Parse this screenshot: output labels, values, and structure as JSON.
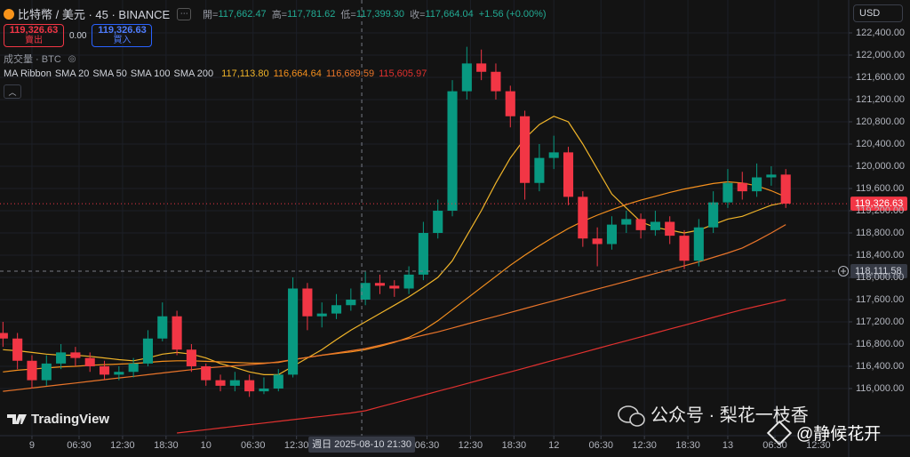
{
  "ui": {
    "symbol": "比特幣 / 美元 · 45 · BINANCE",
    "ohlc": [
      {
        "label": "開=",
        "value": "117,662.47"
      },
      {
        "label": "高=",
        "value": "117,781.62"
      },
      {
        "label": "低=",
        "value": "117,399.30"
      },
      {
        "label": "收=",
        "value": "117,664.04"
      }
    ],
    "change": "+1.56 (+0.00%)",
    "sell_price": "119,326.63",
    "sell_label": "賣出",
    "spread": "0.00",
    "buy_price": "119,326.63",
    "buy_label": "買入",
    "volume_label": "成交量 · BTC",
    "indicator_name": "MA Ribbon",
    "ma_values": [
      "117,113.80",
      "116,664.64",
      "116,689.59",
      "115,605.97"
    ],
    "currency": "USD",
    "logo": "TradingView",
    "watermark": "公众号 · 梨花一枝香",
    "watermark_handle": "@静候花开"
  },
  "chart_data": {
    "type": "candlestick",
    "x": [
      -4,
      -2,
      0,
      2,
      4,
      6,
      8,
      10,
      12,
      14,
      16,
      18,
      20,
      22,
      24,
      26,
      28,
      30,
      32,
      34,
      36,
      38,
      40,
      42,
      44,
      46,
      48,
      50,
      52,
      54,
      56,
      58,
      60,
      62,
      64,
      66,
      68,
      70,
      72,
      74,
      76,
      78,
      80,
      82,
      84,
      86,
      88,
      90,
      92,
      94,
      96,
      98,
      100,
      102,
      104
    ],
    "open": [
      117000,
      116900,
      116500,
      116150,
      116450,
      116650,
      116550,
      116400,
      116250,
      116300,
      116450,
      116900,
      117300,
      116700,
      116400,
      116150,
      116050,
      116150,
      115950,
      116000,
      116250,
      117800,
      117300,
      117350,
      117500,
      117600,
      117900,
      117850,
      117800,
      118050,
      118800,
      119200,
      121350,
      121850,
      121700,
      121350,
      120900,
      119700,
      120150,
      120250,
      119450,
      118700,
      118600,
      118950,
      119050,
      118850,
      119000,
      118750,
      118300,
      118900,
      119350,
      119700,
      119550,
      119800,
      119850
    ],
    "high": [
      117200,
      117000,
      116600,
      116600,
      116800,
      116750,
      116650,
      116500,
      116400,
      116550,
      117050,
      117550,
      117400,
      116800,
      116450,
      116250,
      116300,
      116250,
      116200,
      116350,
      118000,
      117900,
      117550,
      117700,
      117800,
      118100,
      118050,
      117950,
      118200,
      119000,
      119400,
      121550,
      122150,
      122100,
      121850,
      121450,
      121000,
      120400,
      120550,
      120350,
      119550,
      118900,
      119100,
      119200,
      119150,
      119200,
      119100,
      118850,
      119050,
      119550,
      119950,
      119900,
      120050,
      120000,
      119950
    ],
    "low": [
      116750,
      116350,
      116000,
      116050,
      116350,
      116400,
      116300,
      116150,
      116150,
      116200,
      116400,
      116850,
      116600,
      116300,
      116050,
      115950,
      115950,
      115850,
      115900,
      115950,
      116200,
      117050,
      117100,
      117250,
      117400,
      117500,
      117700,
      117650,
      117700,
      117950,
      118700,
      119100,
      121200,
      121550,
      121200,
      120700,
      119400,
      119550,
      119950,
      119300,
      118550,
      118200,
      118500,
      118800,
      118700,
      118750,
      118600,
      118150,
      118200,
      118800,
      119250,
      119400,
      119450,
      119650,
      119250
    ],
    "close": [
      116900,
      116500,
      116150,
      116450,
      116650,
      116550,
      116400,
      116250,
      116300,
      116450,
      116900,
      117300,
      116700,
      116400,
      116150,
      116050,
      116150,
      115950,
      116000,
      116250,
      117800,
      117300,
      117350,
      117500,
      117600,
      117900,
      117850,
      117800,
      118050,
      118800,
      119200,
      121350,
      121850,
      121700,
      121350,
      120900,
      119700,
      120150,
      120250,
      119450,
      118700,
      118600,
      118950,
      119050,
      118850,
      119000,
      118750,
      118300,
      118900,
      119350,
      119700,
      119550,
      119800,
      119850,
      119326.63
    ],
    "up_color": "#089981",
    "down_color": "#f23645",
    "series": [
      {
        "name": "SMA 20",
        "color": "#f0b429",
        "values": [
          116700,
          116680,
          116650,
          116620,
          116600,
          116600,
          116580,
          116550,
          116520,
          116500,
          116550,
          116620,
          116650,
          116620,
          116550,
          116450,
          116380,
          116300,
          116250,
          116250,
          116400,
          116550,
          116700,
          116880,
          117050,
          117200,
          117350,
          117500,
          117650,
          117820,
          118000,
          118300,
          118750,
          119200,
          119700,
          120150,
          120500,
          120750,
          120900,
          120800,
          120400,
          119950,
          119500,
          119250,
          119000,
          118900,
          118850,
          118800,
          118850,
          118950,
          119050,
          119100,
          119200,
          119300,
          119350
        ]
      },
      {
        "name": "SMA 50",
        "color": "#f5901e",
        "values": [
          116300,
          116330,
          116350,
          116370,
          116390,
          116400,
          116420,
          116430,
          116440,
          116450,
          116470,
          116490,
          116500,
          116500,
          116490,
          116480,
          116470,
          116460,
          116460,
          116470,
          116520,
          116560,
          116600,
          116630,
          116660,
          116700,
          116760,
          116830,
          116920,
          117050,
          117220,
          117420,
          117620,
          117820,
          118020,
          118220,
          118400,
          118570,
          118730,
          118880,
          119010,
          119120,
          119220,
          119310,
          119390,
          119460,
          119530,
          119590,
          119640,
          119690,
          119720,
          119700,
          119650,
          119560,
          119450
        ]
      },
      {
        "name": "SMA 100",
        "color": "#e8742a",
        "values": [
          115950,
          115980,
          116010,
          116040,
          116070,
          116100,
          116130,
          116160,
          116190,
          116220,
          116250,
          116280,
          116310,
          116340,
          116370,
          116390,
          116410,
          116430,
          116450,
          116480,
          116520,
          116560,
          116600,
          116640,
          116680,
          116720,
          116780,
          116840,
          116900,
          116960,
          117020,
          117090,
          117160,
          117230,
          117300,
          117370,
          117440,
          117510,
          117580,
          117650,
          117720,
          117790,
          117860,
          117930,
          118000,
          118070,
          118140,
          118210,
          118280,
          118360,
          118440,
          118530,
          118660,
          118800,
          118950
        ]
      },
      {
        "name": "SMA 200",
        "color": "#e0312f",
        "values": [
          null,
          null,
          null,
          null,
          null,
          null,
          null,
          null,
          null,
          null,
          null,
          null,
          115200,
          115230,
          115260,
          115290,
          115320,
          115350,
          115380,
          115410,
          115440,
          115470,
          115500,
          115530,
          115560,
          115600,
          115670,
          115740,
          115810,
          115880,
          115950,
          116020,
          116090,
          116160,
          116230,
          116300,
          116370,
          116440,
          116510,
          116580,
          116650,
          116720,
          116790,
          116860,
          116930,
          117000,
          117070,
          117140,
          117210,
          117280,
          117350,
          117420,
          117480,
          117540,
          117600
        ]
      }
    ],
    "xlim": [
      -4.41,
      112.68
    ],
    "xticks": [
      {
        "value": 0,
        "label": "9"
      },
      {
        "value": 6.5,
        "label": "06:30"
      },
      {
        "value": 12.5,
        "label": "12:30"
      },
      {
        "value": 18.5,
        "label": "18:30"
      },
      {
        "value": 24,
        "label": "10"
      },
      {
        "value": 30.5,
        "label": "06:30"
      },
      {
        "value": 36.5,
        "label": "12:30"
      },
      {
        "value": 54.5,
        "label": "06:30"
      },
      {
        "value": 60.5,
        "label": "12:30"
      },
      {
        "value": 66.5,
        "label": "18:30"
      },
      {
        "value": 72,
        "label": "12"
      },
      {
        "value": 78.5,
        "label": "06:30"
      },
      {
        "value": 84.5,
        "label": "12:30"
      },
      {
        "value": 90.5,
        "label": "18:30"
      },
      {
        "value": 96,
        "label": "13"
      },
      {
        "value": 102.5,
        "label": "06:30"
      },
      {
        "value": 108.5,
        "label": "12:30"
      }
    ],
    "ylim": [
      115152,
      122992
    ],
    "yticks": [
      {
        "value": 116000,
        "label": "116,000.00"
      },
      {
        "value": 116400,
        "label": "116,400.00"
      },
      {
        "value": 116800,
        "label": "116,800.00"
      },
      {
        "value": 117200,
        "label": "117,200.00"
      },
      {
        "value": 117600,
        "label": "117,600.00"
      },
      {
        "value": 118000,
        "label": "118,000.00"
      },
      {
        "value": 118400,
        "label": "118,400.00"
      },
      {
        "value": 118800,
        "label": "118,800.00"
      },
      {
        "value": 119200,
        "label": "119,200.00"
      },
      {
        "value": 119600,
        "label": "119,600.00"
      },
      {
        "value": 120000,
        "label": "120,000.00"
      },
      {
        "value": 120400,
        "label": "120,400.00"
      },
      {
        "value": 120800,
        "label": "120,800.00"
      },
      {
        "value": 121200,
        "label": "121,200.00"
      },
      {
        "value": 121600,
        "label": "121,600.00"
      },
      {
        "value": 122000,
        "label": "122,000.00"
      },
      {
        "value": 122400,
        "label": "122,400.00"
      }
    ],
    "grid": true,
    "last_price": 119326.63,
    "last_price_label": "119,326.63",
    "crosshair": {
      "x": 45.5,
      "x_label": "週日 2025-08-10 21:30",
      "y": 118111.58,
      "y_label": "118,111.58"
    }
  }
}
